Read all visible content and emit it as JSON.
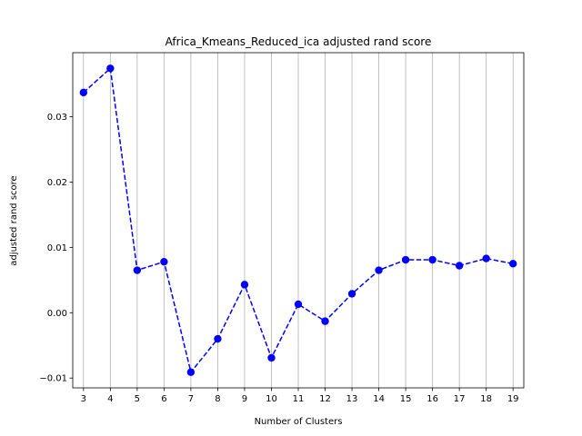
{
  "chart_data": {
    "type": "line",
    "title": "Africa_Kmeans_Reduced_ica adjusted rand score",
    "xlabel": "Number of Clusters",
    "ylabel": "adjusted rand score",
    "x": [
      3,
      4,
      5,
      6,
      7,
      8,
      9,
      10,
      11,
      12,
      13,
      14,
      15,
      16,
      17,
      18,
      19
    ],
    "series": [
      {
        "values": [
          0.0337,
          0.0374,
          0.0065,
          0.0078,
          -0.0091,
          -0.004,
          0.0043,
          -0.0069,
          0.0013,
          -0.0013,
          0.0029,
          0.0065,
          0.0081,
          0.0081,
          0.0072,
          0.0083,
          0.0075
        ],
        "color": "#0000ff",
        "line_style": "dashed",
        "marker": "circle"
      }
    ],
    "xlim": [
      2.6,
      19.4
    ],
    "ylim": [
      -0.0115,
      0.0398
    ],
    "x_ticks": [
      "3",
      "4",
      "5",
      "6",
      "7",
      "8",
      "9",
      "10",
      "11",
      "12",
      "13",
      "14",
      "15",
      "16",
      "17",
      "18",
      "19"
    ],
    "y_ticks": [
      -0.01,
      0.0,
      0.01,
      0.02,
      0.03
    ],
    "y_tick_labels": [
      "−0.01",
      "0.00",
      "0.01",
      "0.02",
      "0.03"
    ],
    "grid": "vertical",
    "grid_color": "#b0b0b0",
    "legend": "none"
  }
}
